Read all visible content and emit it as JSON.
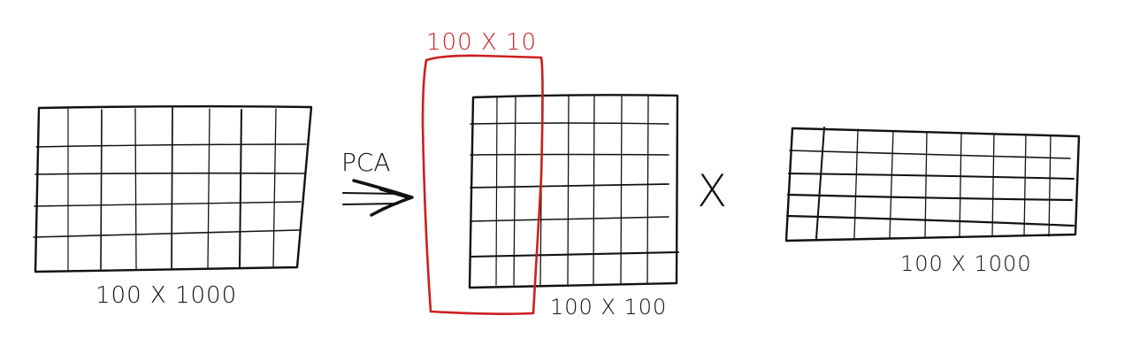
{
  "labels": {
    "input_matrix": "100 X 1000",
    "operation": "PCA",
    "selection": "100 X 10",
    "scores_matrix": "100 X 100",
    "multiply": "X",
    "components_matrix": "100 X 1000"
  },
  "colors": {
    "ink": "#111111",
    "highlight": "#cc1f1f",
    "background": "#ffffff"
  },
  "icons": {
    "arrow": "double-arrow-icon",
    "multiply": "multiply-sign"
  }
}
